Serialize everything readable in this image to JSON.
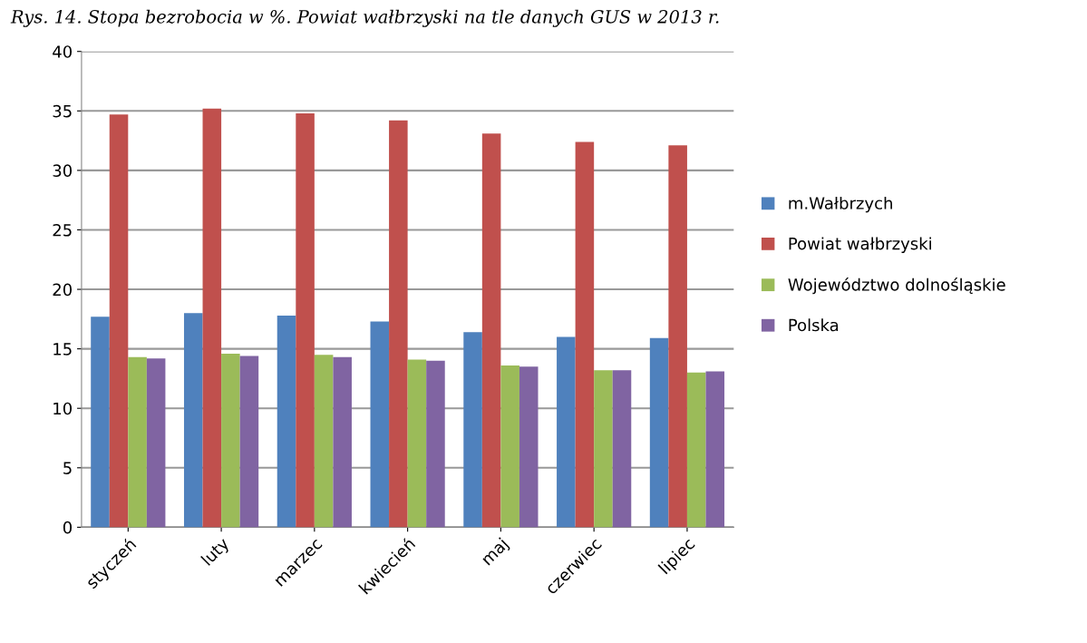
{
  "chart_data": {
    "type": "bar",
    "title": "Rys. 14. Stopa bezrobocia w %. Powiat wałbrzyski na tle danych GUS w 2013 r.",
    "categories": [
      "styczeń",
      "luty",
      "marzec",
      "kwiecień",
      "maj",
      "czerwiec",
      "lipiec"
    ],
    "series": [
      {
        "name": "m.Wałbrzych",
        "color": "#4f81bd",
        "values": [
          17.7,
          18.0,
          17.8,
          17.3,
          16.4,
          16.0,
          15.9
        ]
      },
      {
        "name": "Powiat wałbrzyski",
        "color": "#c0504d",
        "values": [
          34.7,
          35.2,
          34.8,
          34.2,
          33.1,
          32.4,
          32.1
        ]
      },
      {
        "name": "Województwo dolnośląskie",
        "color": "#9bbb59",
        "values": [
          14.3,
          14.6,
          14.5,
          14.1,
          13.6,
          13.2,
          13.0
        ]
      },
      {
        "name": "Polska",
        "color": "#8064a2",
        "values": [
          14.2,
          14.4,
          14.3,
          14.0,
          13.5,
          13.2,
          13.1
        ]
      }
    ],
    "ylim": [
      0,
      40
    ],
    "yticks": [
      0,
      5,
      10,
      15,
      20,
      25,
      30,
      35,
      40
    ],
    "grid": "y",
    "legend": "right"
  }
}
